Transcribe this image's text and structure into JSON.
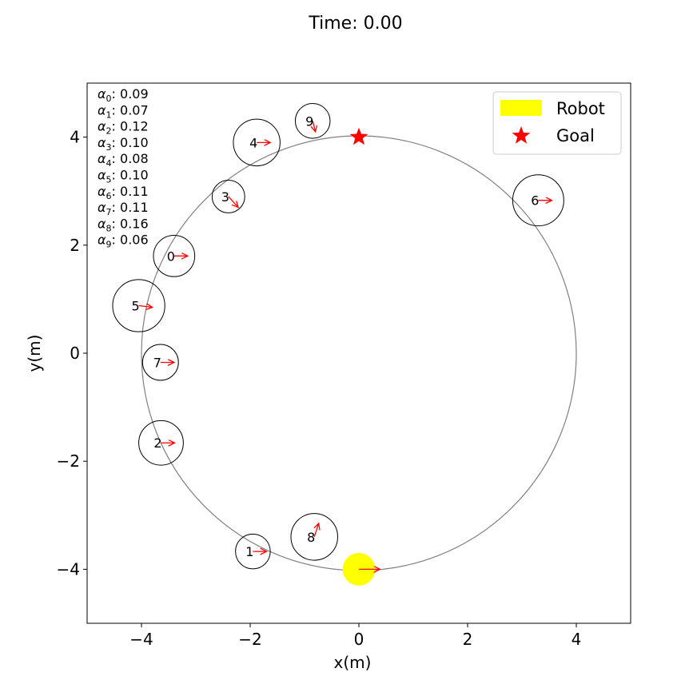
{
  "figure": {
    "title": "Time: 0.00"
  },
  "chart_data": {
    "type": "scatter",
    "title": "Time: 0.00",
    "xlabel": "x(m)",
    "ylabel": "y(m)",
    "xlim": [
      -5,
      5
    ],
    "ylim": [
      -5,
      5
    ],
    "xticks": [
      -4,
      -2,
      0,
      2,
      4
    ],
    "yticks": [
      -4,
      -2,
      0,
      2,
      4
    ],
    "xtick_labels": [
      "−4",
      "−2",
      "0",
      "2",
      "4"
    ],
    "ytick_labels": [
      "−4",
      "−2",
      "0",
      "2",
      "4"
    ],
    "grid": false,
    "legend_position": "top-right",
    "legend": [
      {
        "label": "Robot",
        "marker": "rectangle",
        "color": "#ffff00"
      },
      {
        "label": "Goal",
        "marker": "star",
        "color": "#ff0000"
      }
    ],
    "trajectory_circle": {
      "cx": 0,
      "cy": 0,
      "r": 4,
      "color": "#808080"
    },
    "robot": {
      "x": 0,
      "y": -4,
      "r": 0.3,
      "color": "#ffff00",
      "vx": 0.3,
      "vy": 0
    },
    "goal": {
      "x": 0,
      "y": 4,
      "color": "#ff0000"
    },
    "velocity_color": "#ff0000",
    "humans": [
      {
        "id": "0",
        "x": -3.4,
        "y": 1.8,
        "r": 0.38,
        "vx": 0.25,
        "vy": 0.0
      },
      {
        "id": "1",
        "x": -1.95,
        "y": -3.67,
        "r": 0.32,
        "vx": 0.25,
        "vy": 0.0
      },
      {
        "id": "2",
        "x": -3.64,
        "y": -1.66,
        "r": 0.41,
        "vx": 0.25,
        "vy": 0.0
      },
      {
        "id": "3",
        "x": -2.4,
        "y": 2.9,
        "r": 0.3,
        "vx": 0.18,
        "vy": -0.2
      },
      {
        "id": "4",
        "x": -1.88,
        "y": 3.9,
        "r": 0.43,
        "vx": 0.25,
        "vy": 0.0
      },
      {
        "id": "5",
        "x": -4.05,
        "y": 0.88,
        "r": 0.48,
        "vx": 0.25,
        "vy": -0.03
      },
      {
        "id": "6",
        "x": 3.3,
        "y": 2.83,
        "r": 0.47,
        "vx": 0.25,
        "vy": 0.0
      },
      {
        "id": "7",
        "x": -3.65,
        "y": -0.17,
        "r": 0.33,
        "vx": 0.25,
        "vy": 0.0
      },
      {
        "id": "8",
        "x": -0.82,
        "y": -3.4,
        "r": 0.43,
        "vx": 0.08,
        "vy": 0.25
      },
      {
        "id": "9",
        "x": -0.85,
        "y": 4.3,
        "r": 0.32,
        "vx": 0.05,
        "vy": -0.2
      }
    ],
    "alphas": [
      {
        "sub": "0",
        "value": "0.09"
      },
      {
        "sub": "1",
        "value": "0.07"
      },
      {
        "sub": "2",
        "value": "0.12"
      },
      {
        "sub": "3",
        "value": "0.10"
      },
      {
        "sub": "4",
        "value": "0.08"
      },
      {
        "sub": "5",
        "value": "0.10"
      },
      {
        "sub": "6",
        "value": "0.11"
      },
      {
        "sub": "7",
        "value": "0.11"
      },
      {
        "sub": "8",
        "value": "0.16"
      },
      {
        "sub": "9",
        "value": "0.06"
      }
    ]
  }
}
